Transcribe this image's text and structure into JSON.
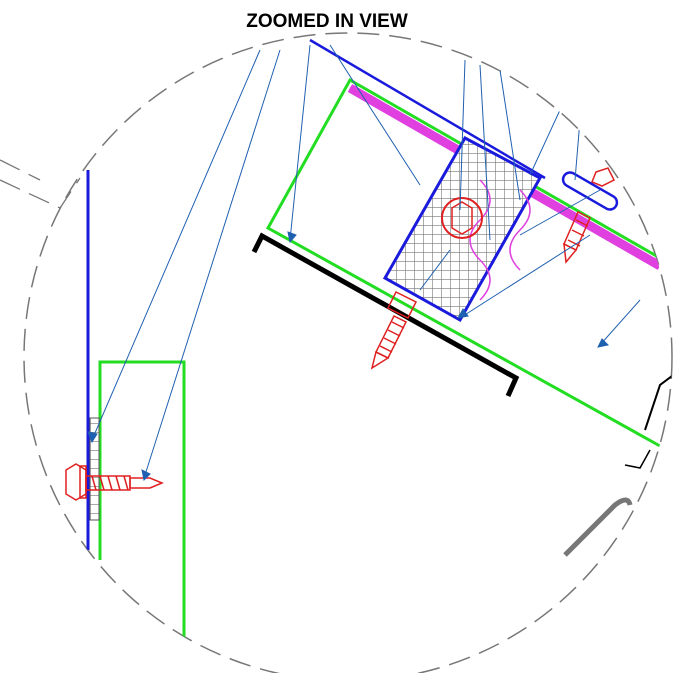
{
  "header": {
    "title": "ZOOMED IN VIEW"
  }
}
